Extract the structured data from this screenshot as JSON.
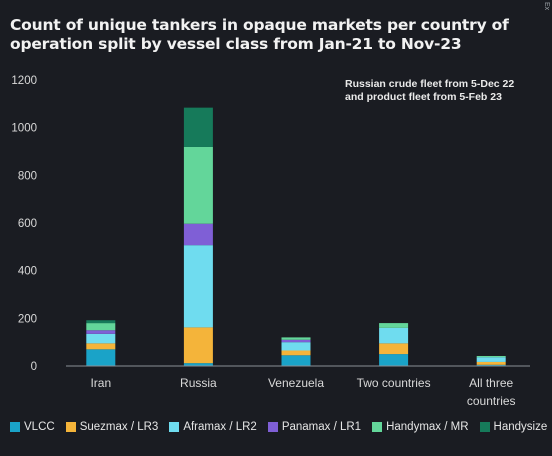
{
  "title": "Count of unique tankers in opaque markets per country of operation split by vessel class from Jan-21 to Nov-23",
  "side_label": "Ex",
  "chart_data": {
    "type": "bar",
    "stacked": true,
    "categories": [
      "Iran",
      "Russia",
      "Venezuela",
      "Two countries",
      "All three countries"
    ],
    "category_lines": [
      [
        "Iran"
      ],
      [
        "Russia"
      ],
      [
        "Venezuela"
      ],
      [
        "Two countries"
      ],
      [
        "All three",
        "countries"
      ]
    ],
    "ylim": [
      0,
      1200
    ],
    "yticks": [
      0,
      200,
      400,
      600,
      800,
      1000,
      1200
    ],
    "grid": false,
    "annotation": [
      "Russian crude fleet from 5-Dec 22",
      "and product fleet from 5-Feb 23"
    ],
    "series": [
      {
        "name": "VLCC",
        "color": "#1aa3c8",
        "values": [
          70,
          12,
          45,
          50,
          5
        ]
      },
      {
        "name": "Suezmax / LR3",
        "color": "#f4b43a",
        "values": [
          25,
          150,
          20,
          45,
          12
        ]
      },
      {
        "name": "Aframax / LR2",
        "color": "#6fdcef",
        "values": [
          40,
          345,
          35,
          65,
          20
        ]
      },
      {
        "name": "Panamax / LR1",
        "color": "#7f5fd6",
        "values": [
          15,
          90,
          10,
          0,
          0
        ]
      },
      {
        "name": "Handymax / MR",
        "color": "#63d69a",
        "values": [
          30,
          322,
          10,
          20,
          5
        ]
      },
      {
        "name": "Handysize",
        "color": "#167a5a",
        "values": [
          12,
          165,
          0,
          0,
          0
        ]
      }
    ]
  }
}
